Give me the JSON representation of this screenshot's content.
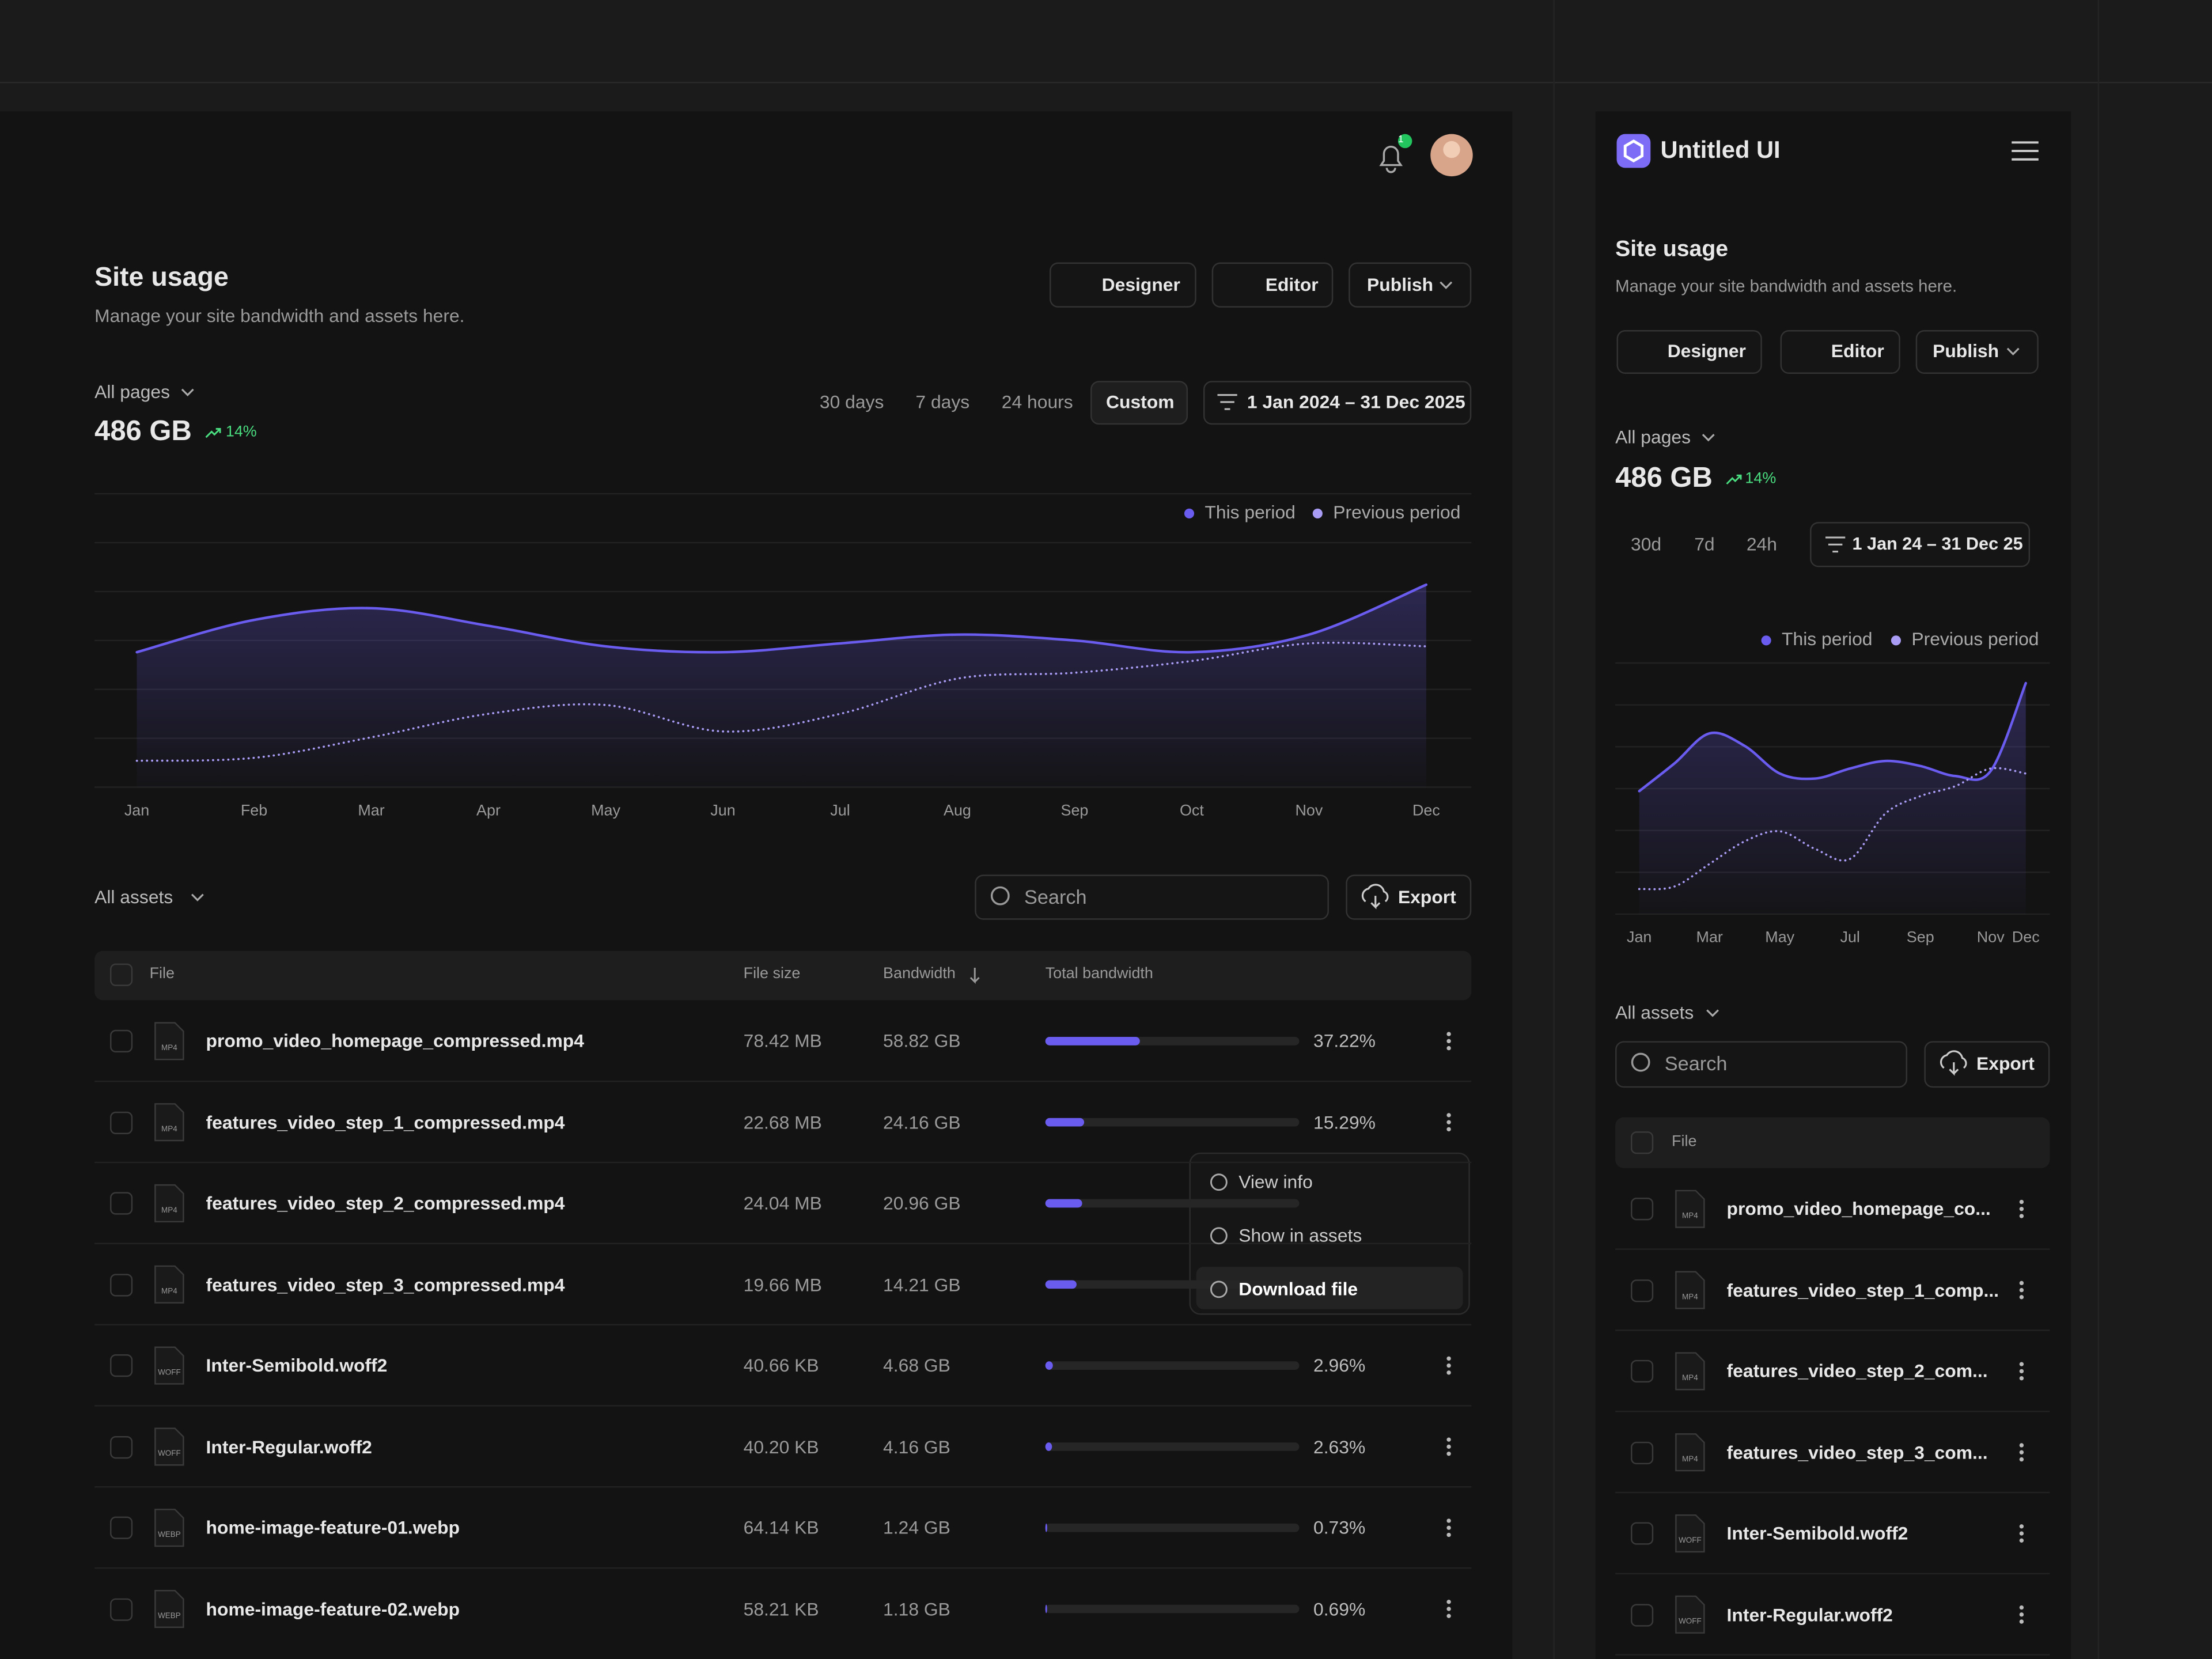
{
  "brand": "Untitled UI",
  "notification_count": "1",
  "header": {
    "title": "Site usage",
    "subtitle": "Manage your site bandwidth and assets here.",
    "buttons": [
      "Designer",
      "Editor",
      "Publish"
    ]
  },
  "summary": {
    "filter": "All pages",
    "value": "486 GB",
    "change": "14%"
  },
  "ranges": [
    "30 days",
    "7 days",
    "24 hours",
    "Custom"
  ],
  "date_range": "1 Jan 2024 – 31 Dec 2025",
  "mobile_ranges": [
    "30d",
    "7d",
    "24h"
  ],
  "mobile_date_range": "1 Jan 24 – 31 Dec 25",
  "chart_data": [
    {
      "type": "line",
      "grid": true,
      "ylim": [
        0,
        100
      ],
      "categories": [
        "Jan",
        "Feb",
        "Mar",
        "Apr",
        "May",
        "Jun",
        "Jul",
        "Aug",
        "Sep",
        "Oct",
        "Nov",
        "Dec"
      ],
      "series": [
        {
          "name": "This period",
          "color": "#6b5cf0",
          "values": [
            46,
            57,
            61,
            55,
            48,
            46,
            49,
            52,
            50,
            46,
            52,
            69
          ]
        },
        {
          "name": "Previous period",
          "color": "#a99cf5",
          "values": [
            9,
            10,
            17,
            25,
            28,
            19,
            25,
            37,
            39,
            43,
            49,
            48
          ]
        }
      ]
    },
    {
      "type": "line",
      "grid": true,
      "ylim": [
        0,
        100
      ],
      "categories": [
        "Jan",
        null,
        "Mar",
        null,
        "May",
        null,
        "Jul",
        null,
        "Sep",
        null,
        "Nov",
        "Dec"
      ],
      "series": [
        {
          "name": "This period",
          "color": "#6b5cf0",
          "values": [
            49,
            60,
            72,
            67,
            56,
            54,
            58,
            61,
            59,
            55,
            57,
            92
          ]
        },
        {
          "name": "Previous period",
          "color": "#a99cf5",
          "values": [
            10,
            11,
            20,
            29,
            33,
            26,
            22,
            40,
            47,
            51,
            58,
            56
          ]
        }
      ]
    }
  ],
  "assets": {
    "filter": "All assets",
    "search_placeholder": "Search",
    "export": "Export",
    "columns": [
      "File",
      "File size",
      "Bandwidth",
      "Total bandwidth"
    ],
    "rows": [
      {
        "name": "promo_video_homepage_compressed.mp4",
        "type": "MP4",
        "size": "78.42 MB",
        "bandwidth": "58.82 GB",
        "share": 37.22,
        "share_label": "37.22%"
      },
      {
        "name": "features_video_step_1_compressed.mp4",
        "type": "MP4",
        "size": "22.68 MB",
        "bandwidth": "24.16 GB",
        "share": 15.29,
        "share_label": "15.29%"
      },
      {
        "name": "features_video_step_2_compressed.mp4",
        "type": "MP4",
        "size": "24.04 MB",
        "bandwidth": "20.96 GB",
        "share": 14.5,
        "share_label": null
      },
      {
        "name": "features_video_step_3_compressed.mp4",
        "type": "MP4",
        "size": "19.66 MB",
        "bandwidth": "14.21 GB",
        "share": 12.3,
        "share_label": null
      },
      {
        "name": "Inter-Semibold.woff2",
        "type": "WOFF",
        "size": "40.66 KB",
        "bandwidth": "4.68 GB",
        "share": 2.96,
        "share_label": "2.96%"
      },
      {
        "name": "Inter-Regular.woff2",
        "type": "WOFF",
        "size": "40.20 KB",
        "bandwidth": "4.16 GB",
        "share": 2.63,
        "share_label": "2.63%"
      },
      {
        "name": "home-image-feature-01.webp",
        "type": "WEBP",
        "size": "64.14 KB",
        "bandwidth": "1.24 GB",
        "share": 0.73,
        "share_label": "0.73%"
      },
      {
        "name": "home-image-feature-02.webp",
        "type": "WEBP",
        "size": "58.21 KB",
        "bandwidth": "1.18 GB",
        "share": 0.69,
        "share_label": "0.69%"
      }
    ]
  },
  "menu": [
    "View info",
    "Show in assets",
    "Download file"
  ],
  "mobile_rows": [
    {
      "name": "promo_video_homepage_co...",
      "type": "MP4"
    },
    {
      "name": "features_video_step_1_comp...",
      "type": "MP4"
    },
    {
      "name": "features_video_step_2_com...",
      "type": "MP4"
    },
    {
      "name": "features_video_step_3_com...",
      "type": "MP4"
    },
    {
      "name": "Inter-Semibold.woff2",
      "type": "WOFF"
    },
    {
      "name": "Inter-Regular.woff2",
      "type": "WOFF"
    }
  ]
}
